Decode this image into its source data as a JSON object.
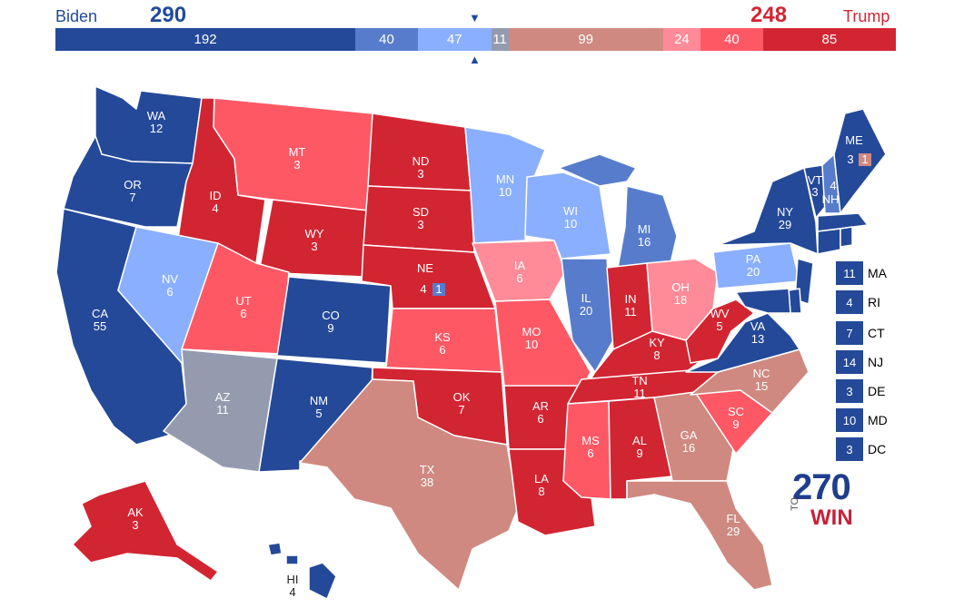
{
  "header": {
    "biden_name": "Biden",
    "biden_total": "290",
    "trump_name": "Trump",
    "trump_total": "248",
    "marker": "▼",
    "marker_up": "▲"
  },
  "tally": [
    {
      "value": "192",
      "color": "#244999",
      "width": 192
    },
    {
      "value": "40",
      "color": "#577ccc",
      "width": 40
    },
    {
      "value": "47",
      "color": "#8aaffe",
      "width": 47
    },
    {
      "value": "11",
      "color": "#949baf",
      "width": 11
    },
    {
      "value": "99",
      "color": "#cf8980",
      "width": 99
    },
    {
      "value": "24",
      "color": "#ff8b98",
      "width": 24
    },
    {
      "value": "40",
      "color": "#ff5865",
      "width": 40
    },
    {
      "value": "85",
      "color": "#d22532",
      "width": 85
    }
  ],
  "colors": {
    "safe_dem": "#244999",
    "likely_dem": "#577ccc",
    "lean_dem": "#8aaffe",
    "tossup": "#949baf",
    "tilt_rep": "#cf8980",
    "lean_rep": "#ff8b98",
    "likely_rep": "#ff5865",
    "safe_rep": "#d22532"
  },
  "states": {
    "WA": {
      "abbr": "WA",
      "ev": "12"
    },
    "OR": {
      "abbr": "OR",
      "ev": "7"
    },
    "CA": {
      "abbr": "CA",
      "ev": "55"
    },
    "ID": {
      "abbr": "ID",
      "ev": "4"
    },
    "NV": {
      "abbr": "NV",
      "ev": "6"
    },
    "MT": {
      "abbr": "MT",
      "ev": "3"
    },
    "WY": {
      "abbr": "WY",
      "ev": "3"
    },
    "UT": {
      "abbr": "UT",
      "ev": "6"
    },
    "AZ": {
      "abbr": "AZ",
      "ev": "11"
    },
    "CO": {
      "abbr": "CO",
      "ev": "9"
    },
    "NM": {
      "abbr": "NM",
      "ev": "5"
    },
    "ND": {
      "abbr": "ND",
      "ev": "3"
    },
    "SD": {
      "abbr": "SD",
      "ev": "3"
    },
    "NE": {
      "abbr": "NE",
      "ev": "4",
      "split": "1"
    },
    "KS": {
      "abbr": "KS",
      "ev": "6"
    },
    "OK": {
      "abbr": "OK",
      "ev": "7"
    },
    "TX": {
      "abbr": "TX",
      "ev": "38"
    },
    "MN": {
      "abbr": "MN",
      "ev": "10"
    },
    "IA": {
      "abbr": "IA",
      "ev": "6"
    },
    "MO": {
      "abbr": "MO",
      "ev": "10"
    },
    "AR": {
      "abbr": "AR",
      "ev": "6"
    },
    "LA": {
      "abbr": "LA",
      "ev": "8"
    },
    "WI": {
      "abbr": "WI",
      "ev": "10"
    },
    "IL": {
      "abbr": "IL",
      "ev": "20"
    },
    "MI": {
      "abbr": "MI",
      "ev": "16"
    },
    "IN": {
      "abbr": "IN",
      "ev": "11"
    },
    "OH": {
      "abbr": "OH",
      "ev": "18"
    },
    "KY": {
      "abbr": "KY",
      "ev": "8"
    },
    "TN": {
      "abbr": "TN",
      "ev": "11"
    },
    "MS": {
      "abbr": "MS",
      "ev": "6"
    },
    "AL": {
      "abbr": "AL",
      "ev": "9"
    },
    "GA": {
      "abbr": "GA",
      "ev": "16"
    },
    "FL": {
      "abbr": "FL",
      "ev": "29"
    },
    "SC": {
      "abbr": "SC",
      "ev": "9"
    },
    "NC": {
      "abbr": "NC",
      "ev": "15"
    },
    "VA": {
      "abbr": "VA",
      "ev": "13"
    },
    "WV": {
      "abbr": "WV",
      "ev": "5"
    },
    "PA": {
      "abbr": "PA",
      "ev": "20"
    },
    "NY": {
      "abbr": "NY",
      "ev": "29"
    },
    "VT": {
      "abbr": "VT",
      "ev": "3"
    },
    "NH": {
      "abbr": "NH",
      "ev": "4"
    },
    "ME": {
      "abbr": "ME",
      "ev": "3",
      "split": "1"
    },
    "AK": {
      "abbr": "AK",
      "ev": "3"
    },
    "HI": {
      "abbr": "HI",
      "ev": "4"
    }
  },
  "small_states": [
    {
      "abbr": "MA",
      "ev": "11"
    },
    {
      "abbr": "RI",
      "ev": "4"
    },
    {
      "abbr": "CT",
      "ev": "7"
    },
    {
      "abbr": "NJ",
      "ev": "14"
    },
    {
      "abbr": "DE",
      "ev": "3"
    },
    {
      "abbr": "MD",
      "ev": "10"
    },
    {
      "abbr": "DC",
      "ev": "3"
    }
  ],
  "logo": {
    "num": "270",
    "to": "TO",
    "win": "WIN"
  }
}
